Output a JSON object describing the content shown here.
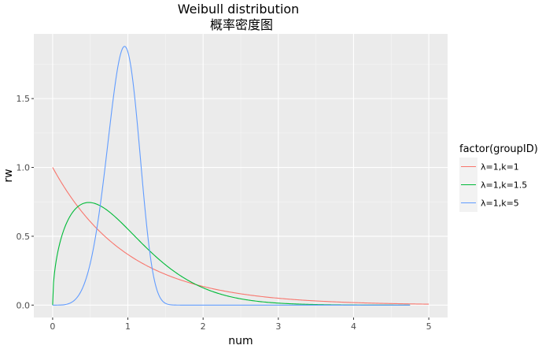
{
  "chart_data": {
    "type": "line",
    "title": "Weibull distribution",
    "subtitle": "概率密度图",
    "xlabel": "num",
    "ylabel": "rw",
    "xlim": [
      -0.25,
      5.25
    ],
    "ylim": [
      -0.09,
      1.97
    ],
    "x_ticks": [
      "0",
      "1",
      "2",
      "3",
      "4",
      "5"
    ],
    "y_ticks": [
      "0.0",
      "0.5",
      "1.0",
      "1.5"
    ],
    "legend_title": "factor(groupID)",
    "legend_position": "right",
    "grid": true,
    "series": [
      {
        "name": "λ=1,k=1",
        "color": "#F8766D",
        "lambda": 1,
        "k": 1,
        "x_range": [
          0,
          5
        ]
      },
      {
        "name": "λ=1,k=1.5",
        "color": "#00BA38",
        "lambda": 1,
        "k": 1.5,
        "x_range": [
          0,
          4.75
        ]
      },
      {
        "name": "λ=1,k=5",
        "color": "#619CFF",
        "lambda": 1,
        "k": 5,
        "x_range": [
          0,
          4.75
        ]
      }
    ]
  }
}
